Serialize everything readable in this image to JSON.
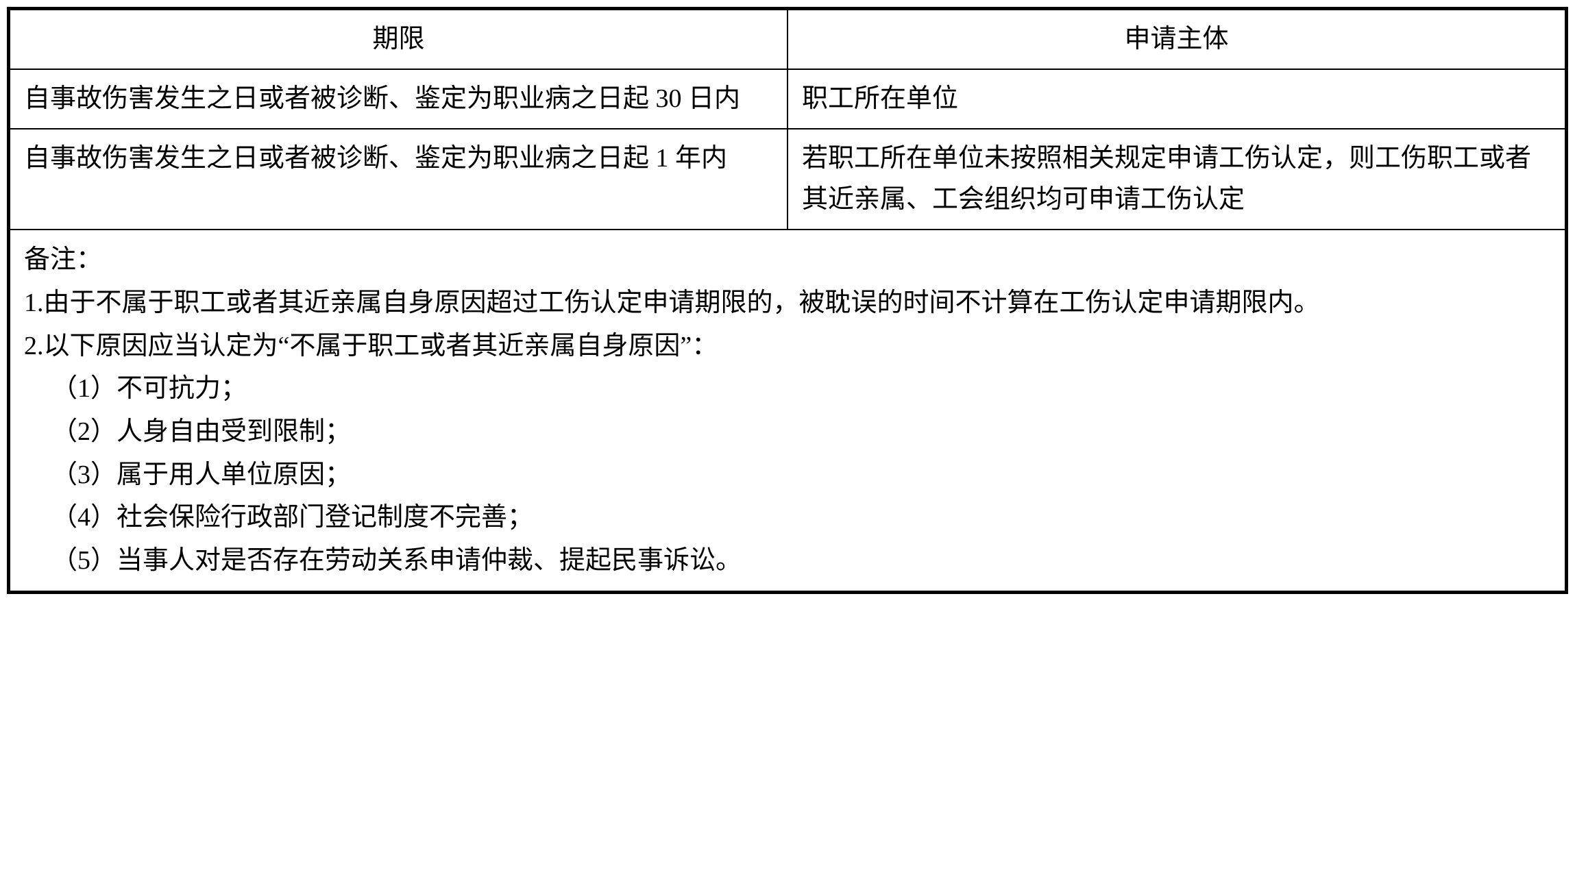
{
  "table": {
    "headers": {
      "col1": "期限",
      "col2": "申请主体"
    },
    "rows": [
      {
        "col1": "自事故伤害发生之日或者被诊断、鉴定为职业病之日起 30 日内",
        "col2": "职工所在单位"
      },
      {
        "col1": "自事故伤害发生之日或者被诊断、鉴定为职业病之日起 1 年内",
        "col2": "若职工所在单位未按照相关规定申请工伤认定，则工伤职工或者其近亲属、工会组织均可申请工伤认定"
      }
    ],
    "notes": {
      "title": "备注：",
      "note1": "1.由于不属于职工或者其近亲属自身原因超过工伤认定申请期限的，被耽误的时间不计算在工伤认定申请期限内。",
      "note2": "2.以下原因应当认定为“不属于职工或者其近亲属自身原因”：",
      "items": [
        "（1）不可抗力；",
        "（2）人身自由受到限制；",
        "（3）属于用人单位原因；",
        "（4）社会保险行政部门登记制度不完善；",
        "（5）当事人对是否存在劳动关系申请仲裁、提起民事诉讼。"
      ]
    }
  },
  "styling": {
    "border_color": "#000000",
    "background_color": "#ffffff",
    "text_color": "#000000",
    "font_size": 38,
    "line_height": 1.6,
    "border_width_outer": 3,
    "border_width_inner": 2
  }
}
